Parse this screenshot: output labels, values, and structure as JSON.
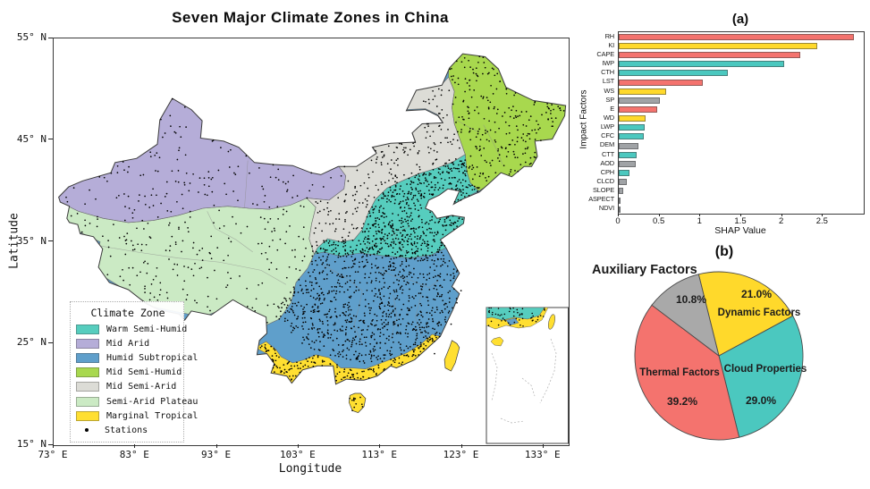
{
  "map": {
    "title": "Seven Major Climate Zones in China",
    "xlabel": "Longitude",
    "ylabel": "Latitude",
    "x_ticks": [
      "73° E",
      "83° E",
      "93° E",
      "103° E",
      "113° E",
      "123° E",
      "133° E"
    ],
    "y_ticks": [
      "55° N",
      "45° N",
      "35° N",
      "25° N",
      "15° N"
    ],
    "legend_title": "Climate Zone",
    "stations_label": "Stations",
    "zones": [
      {
        "id": "warm_semi_humid",
        "label": "Warm Semi-Humid",
        "color": "#56CDBE"
      },
      {
        "id": "mid_arid",
        "label": "Mid Arid",
        "color": "#B5ADD8"
      },
      {
        "id": "humid_subtropical",
        "label": "Humid Subtropical",
        "color": "#5F9FCB"
      },
      {
        "id": "mid_semi_humid",
        "label": "Mid Semi-Humid",
        "color": "#A8D84E"
      },
      {
        "id": "mid_semi_arid",
        "label": "Mid Semi-Arid",
        "color": "#DCDCD6"
      },
      {
        "id": "semi_arid_plateau",
        "label": "Semi-Arid Plateau",
        "color": "#CBEAC4"
      },
      {
        "id": "marginal_tropical",
        "label": "Marginal Tropical",
        "color": "#FFDF31"
      }
    ]
  },
  "chart_data": [
    {
      "type": "bar",
      "orientation": "horizontal",
      "panel_label": "(a)",
      "xlabel": "SHAP Value",
      "ylabel": "Impact Factors",
      "xlim": [
        0,
        3.0
      ],
      "x_ticks": [
        "0",
        "0.5",
        "1",
        "1.5",
        "2",
        "2.5"
      ],
      "x_tick_values": [
        0,
        0.5,
        1,
        1.5,
        2,
        2.5
      ],
      "categories": [
        "RH",
        "KI",
        "CAPE",
        "IWP",
        "CTH",
        "LST",
        "WS",
        "SP",
        "E",
        "WD",
        "LWP",
        "CFC",
        "DEM",
        "CTT",
        "AOD",
        "CPH",
        "CLCD",
        "SLOPE",
        "ASPECT",
        "NDVI"
      ],
      "values": [
        2.88,
        2.43,
        2.22,
        2.03,
        1.34,
        1.03,
        0.58,
        0.5,
        0.47,
        0.33,
        0.32,
        0.31,
        0.24,
        0.22,
        0.21,
        0.13,
        0.1,
        0.05,
        0.02,
        0.01
      ],
      "bar_colors": [
        "#F4736E",
        "#FFD92B",
        "#F4736E",
        "#4BC8BF",
        "#4BC8BF",
        "#F4736E",
        "#FFD92B",
        "#A0A3A6",
        "#F4736E",
        "#FFD92B",
        "#4BC8BF",
        "#4BC8BF",
        "#A0A3A6",
        "#4BC8BF",
        "#A0A3A6",
        "#4BC8BF",
        "#A0A3A6",
        "#A0A3A6",
        "#A0A3A6",
        "#A0A3A6"
      ],
      "color_legend": {
        "thermal": "#F4736E",
        "dynamic": "#FFD92B",
        "cloud": "#4BC8BF",
        "auxiliary": "#A0A3A6"
      }
    },
    {
      "type": "pie",
      "panel_label": "(b)",
      "start_angle_deg": -14,
      "direction": "clockwise",
      "slices": [
        {
          "label": "Dynamic Factors",
          "value": 21.0,
          "pct_label": "21.0%",
          "color": "#FFD92B"
        },
        {
          "label": "Cloud Properties",
          "value": 29.0,
          "pct_label": "29.0%",
          "color": "#4BC8BF"
        },
        {
          "label": "Thermal Factors",
          "value": 39.2,
          "pct_label": "39.2%",
          "color": "#F4736E"
        },
        {
          "label": "Auxiliary Factors",
          "value": 10.8,
          "pct_label": "10.8%",
          "color": "#A9A9A9"
        }
      ]
    }
  ]
}
